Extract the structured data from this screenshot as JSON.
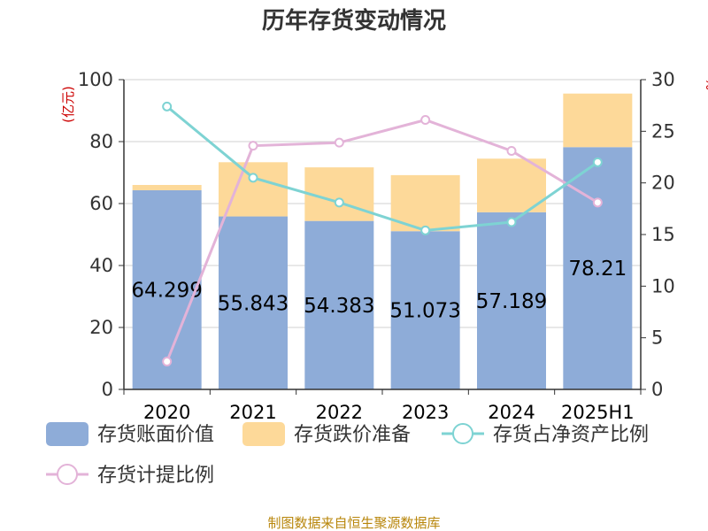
{
  "title": "历年存货变动情况",
  "source": "制图数据来自恒生聚源数据库",
  "colors": {
    "book_value": "#8eacd8",
    "provision": "#fdd999",
    "net_asset_ratio": "#7ed3d3",
    "provision_ratio": "#e3b3d8",
    "unit_text": "#cc0000",
    "source_text": "#b8860b"
  },
  "chart_data": {
    "type": "bar",
    "stacked": true,
    "title": "历年存货变动情况",
    "categories": [
      "2020",
      "2021",
      "2022",
      "2023",
      "2024",
      "2025H1"
    ],
    "left_axis": {
      "unit": "(亿元)",
      "range": [
        0,
        100
      ],
      "ticks": [
        0,
        20,
        40,
        60,
        80,
        100
      ]
    },
    "right_axis": {
      "unit": "%",
      "range": [
        0,
        30
      ],
      "ticks": [
        0,
        5,
        10,
        15,
        20,
        25,
        30
      ]
    },
    "grid": true,
    "legend_position": "bottom",
    "series": [
      {
        "name": "存货账面价值",
        "type": "bar",
        "axis": "left",
        "color": "#8eacd8",
        "values": [
          64.299,
          55.843,
          54.383,
          51.073,
          57.189,
          78.21
        ],
        "labels": [
          "64.299",
          "55.843",
          "54.383",
          "51.073",
          "57.189",
          "78.21"
        ]
      },
      {
        "name": "存货跌价准备",
        "type": "bar",
        "axis": "left",
        "color": "#fdd999",
        "values": [
          1.7,
          17.5,
          17.3,
          18.1,
          17.3,
          17.3
        ]
      },
      {
        "name": "存货占净资产比例",
        "type": "line",
        "axis": "right",
        "color": "#7ed3d3",
        "values": [
          27.4,
          20.5,
          18.1,
          15.4,
          16.2,
          22.0
        ]
      },
      {
        "name": "存货计提比例",
        "type": "line",
        "axis": "right",
        "color": "#e3b3d8",
        "values": [
          2.7,
          23.6,
          23.9,
          26.1,
          23.1,
          18.1
        ]
      }
    ]
  }
}
